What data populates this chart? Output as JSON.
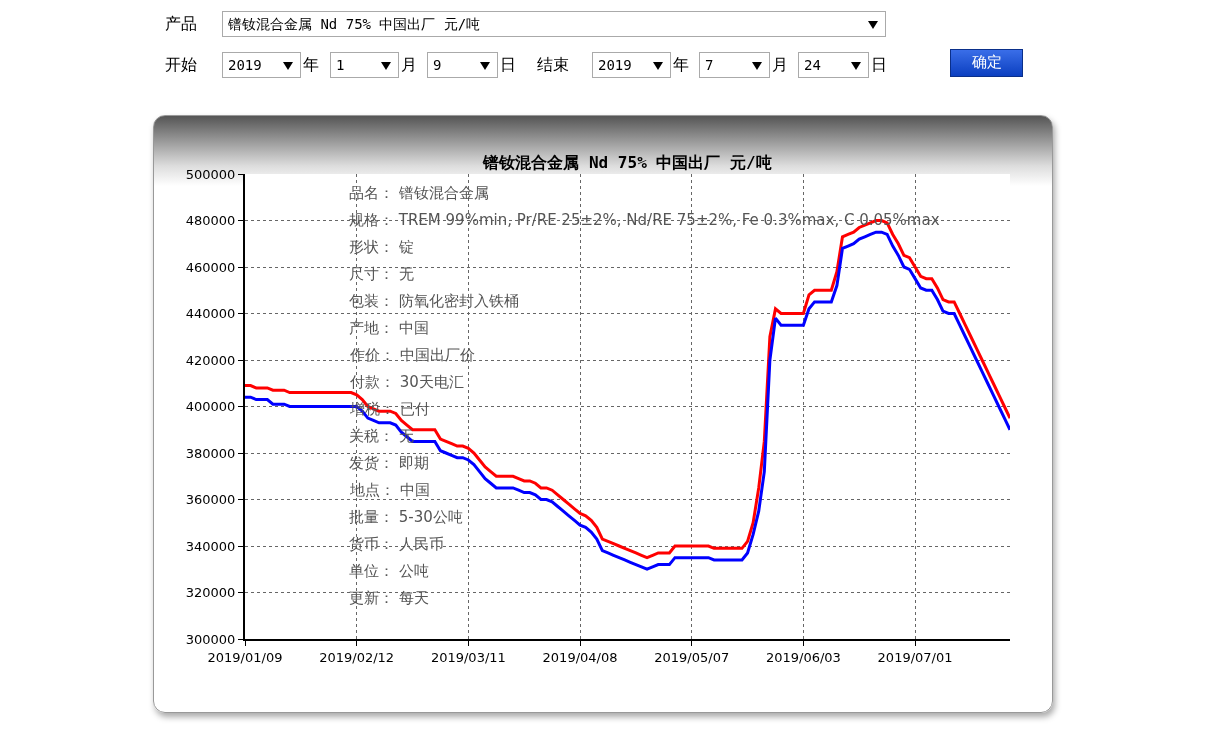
{
  "chart_data": {
    "type": "line",
    "title": "镨钕混合金属 Nd 75% 中国出厂 元/吨",
    "categories": [
      "2019/01/09",
      null,
      null,
      null,
      null,
      null,
      null,
      null,
      null,
      null,
      null,
      null,
      null,
      null,
      null,
      null,
      null,
      null,
      null,
      null,
      "2019/02/12",
      null,
      null,
      null,
      null,
      null,
      null,
      null,
      null,
      null,
      null,
      null,
      null,
      null,
      null,
      null,
      null,
      null,
      null,
      null,
      "2019/03/11",
      null,
      null,
      null,
      null,
      null,
      null,
      null,
      null,
      null,
      null,
      null,
      null,
      null,
      null,
      null,
      null,
      null,
      null,
      null,
      "2019/04/08",
      null,
      null,
      null,
      null,
      null,
      null,
      null,
      null,
      null,
      null,
      null,
      null,
      null,
      null,
      null,
      null,
      null,
      null,
      null,
      "2019/05/07",
      null,
      null,
      null,
      null,
      null,
      null,
      null,
      null,
      null,
      null,
      null,
      null,
      null,
      null,
      null,
      null,
      null,
      null,
      null,
      "2019/06/03",
      null,
      null,
      null,
      null,
      null,
      null,
      null,
      null,
      null,
      null,
      null,
      null,
      null,
      null,
      null,
      null,
      null,
      null,
      null,
      "2019/07/01",
      null,
      null,
      null,
      null,
      null,
      null,
      null,
      null,
      null,
      null,
      null,
      null,
      null,
      null,
      null,
      null,
      null
    ],
    "series": [
      {
        "color": "#ff0000",
        "values": [
          409000,
          409000,
          408000,
          408000,
          408000,
          407000,
          407000,
          407000,
          406000,
          406000,
          406000,
          406000,
          406000,
          406000,
          406000,
          406000,
          406000,
          406000,
          406000,
          406000,
          405000,
          403000,
          400000,
          399000,
          398000,
          398000,
          398000,
          397000,
          394000,
          392000,
          390000,
          390000,
          390000,
          390000,
          390000,
          386000,
          385000,
          384000,
          383000,
          383000,
          382000,
          380000,
          377000,
          374000,
          372000,
          370000,
          370000,
          370000,
          370000,
          369000,
          368000,
          368000,
          367000,
          365000,
          365000,
          364000,
          362000,
          360000,
          358000,
          356000,
          354000,
          353000,
          351000,
          348000,
          343000,
          342000,
          341000,
          340000,
          339000,
          338000,
          337000,
          336000,
          335000,
          336000,
          337000,
          337000,
          337000,
          340000,
          340000,
          340000,
          340000,
          340000,
          340000,
          340000,
          339000,
          339000,
          339000,
          339000,
          339000,
          339000,
          342000,
          350000,
          365000,
          385000,
          430000,
          442000,
          440000,
          440000,
          440000,
          440000,
          440000,
          448000,
          450000,
          450000,
          450000,
          450000,
          458000,
          473000,
          474000,
          475000,
          477000,
          478000,
          479000,
          480000,
          480000,
          479000,
          474000,
          470000,
          465000,
          464000,
          460000,
          456000,
          455000,
          455000,
          451000,
          446000,
          445000,
          445000,
          440000,
          435000,
          430000,
          425000,
          420000,
          415000,
          410000,
          405000,
          400000,
          395000
        ]
      },
      {
        "color": "#0000ff",
        "values": [
          404000,
          404000,
          403000,
          403000,
          403000,
          401000,
          401000,
          401000,
          400000,
          400000,
          400000,
          400000,
          400000,
          400000,
          400000,
          400000,
          400000,
          400000,
          400000,
          400000,
          400000,
          398000,
          395000,
          394000,
          393000,
          393000,
          393000,
          392000,
          389000,
          387000,
          385000,
          385000,
          385000,
          385000,
          385000,
          381000,
          380000,
          379000,
          378000,
          378000,
          377000,
          375000,
          372000,
          369000,
          367000,
          365000,
          365000,
          365000,
          365000,
          364000,
          363000,
          363000,
          362000,
          360000,
          360000,
          359000,
          357000,
          355000,
          353000,
          351000,
          349000,
          348000,
          346000,
          343000,
          338000,
          337000,
          336000,
          335000,
          334000,
          333000,
          332000,
          331000,
          330000,
          331000,
          332000,
          332000,
          332000,
          335000,
          335000,
          335000,
          335000,
          335000,
          335000,
          335000,
          334000,
          334000,
          334000,
          334000,
          334000,
          334000,
          337000,
          345000,
          355000,
          372000,
          420000,
          438000,
          435000,
          435000,
          435000,
          435000,
          435000,
          442000,
          445000,
          445000,
          445000,
          445000,
          452000,
          468000,
          469000,
          470000,
          472000,
          473000,
          474000,
          475000,
          475000,
          474000,
          469000,
          465000,
          460000,
          459000,
          455000,
          451000,
          450000,
          450000,
          446000,
          441000,
          440000,
          440000,
          435000,
          430000,
          425000,
          420000,
          415000,
          410000,
          405000,
          400000,
          395000,
          390000
        ]
      }
    ],
    "ylim": [
      300000,
      500000
    ],
    "yticks": [
      300000,
      320000,
      340000,
      360000,
      380000,
      400000,
      420000,
      440000,
      460000,
      480000,
      500000
    ],
    "grid": true,
    "line_style": "solid",
    "annotations": [
      "产品",
      "开始",
      "2019",
      "年",
      "1",
      "月",
      "9",
      "日",
      "结束",
      "2019",
      "年",
      "7",
      "月",
      "24",
      "日",
      "确定",
      "品名： 镨钕混合金属",
      "规格： TREM 99%min, Pr/RE 25±2%, Nd/RE 75±2%, Fe 0.3%max, C 0.05%max",
      "形状： 锭",
      "尺寸： 无",
      "包装： 防氧化密封入铁桶",
      "产地： 中国",
      "作价： 中国出厂价",
      "付款： 30天电汇",
      "增税： 已付",
      "关税： 无",
      "发货： 即期",
      "地点： 中国",
      "批量： 5-30公吨",
      "货币： 人民币",
      "单位： 公吨",
      "更新： 每天"
    ]
  }
}
